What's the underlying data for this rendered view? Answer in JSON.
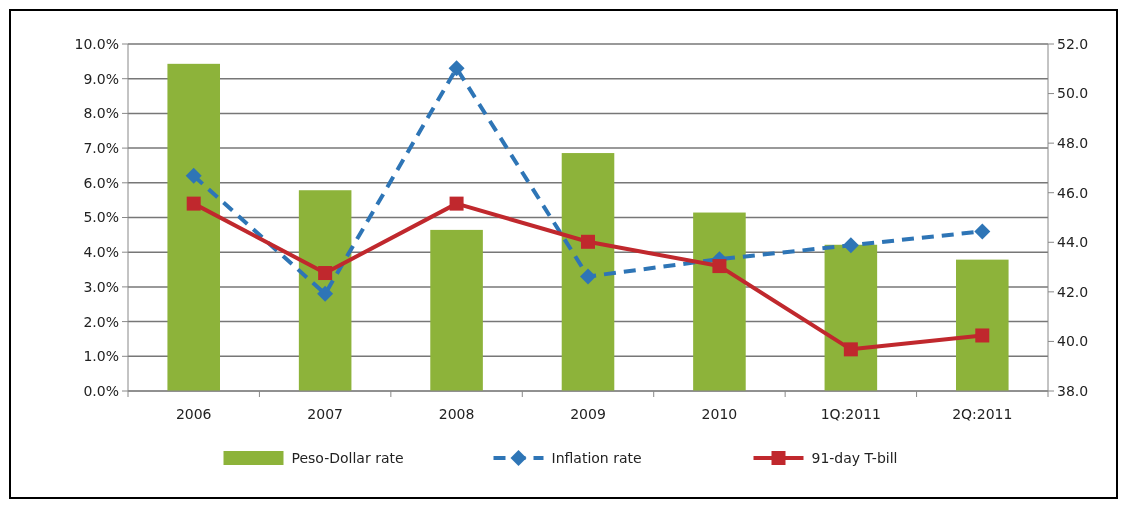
{
  "chart_data": {
    "type": "line",
    "categories": [
      "2006",
      "2007",
      "2008",
      "2009",
      "2010",
      "1Q:2011",
      "2Q:2011"
    ],
    "series": [
      {
        "name": "Peso-Dollar rate",
        "type": "bar",
        "axis": "y2",
        "color": "#8db33a",
        "values": [
          51.2,
          46.1,
          44.5,
          47.6,
          45.2,
          43.9,
          43.3
        ]
      },
      {
        "name": "Inflation rate",
        "color": "#2e75b6",
        "marker": "diamond",
        "line_style": "dashed",
        "values": [
          6.2,
          2.8,
          9.3,
          3.3,
          3.8,
          4.2,
          4.6
        ]
      },
      {
        "name": "91-day T-bill",
        "color": "#c0282d",
        "marker": "square",
        "line_style": "solid",
        "values": [
          5.4,
          3.4,
          5.4,
          4.3,
          3.6,
          1.2,
          1.6
        ]
      }
    ],
    "ylim": [
      0,
      10
    ],
    "yticks": [
      {
        "value": 0,
        "label": "0.0%"
      },
      {
        "value": 1,
        "label": "1.0%"
      },
      {
        "value": 2,
        "label": "2.0%"
      },
      {
        "value": 3,
        "label": "3.0%"
      },
      {
        "value": 4,
        "label": "4.0%"
      },
      {
        "value": 5,
        "label": "5.0%"
      },
      {
        "value": 6,
        "label": "6.0%"
      },
      {
        "value": 7,
        "label": "7.0%"
      },
      {
        "value": 8,
        "label": "8.0%"
      },
      {
        "value": 9,
        "label": "9.0%"
      },
      {
        "value": 10,
        "label": "10.0%"
      }
    ],
    "y2lim": [
      38,
      52
    ],
    "y2ticks": [
      {
        "value": 38,
        "label": "38.0"
      },
      {
        "value": 40,
        "label": "40.0"
      },
      {
        "value": 42,
        "label": "42.0"
      },
      {
        "value": 44,
        "label": "44.0"
      },
      {
        "value": 46,
        "label": "46.0"
      },
      {
        "value": 48,
        "label": "48.0"
      },
      {
        "value": 50,
        "label": "50.0"
      },
      {
        "value": 52,
        "label": "52.0"
      }
    ],
    "grid": "y",
    "legend": "bottom"
  }
}
